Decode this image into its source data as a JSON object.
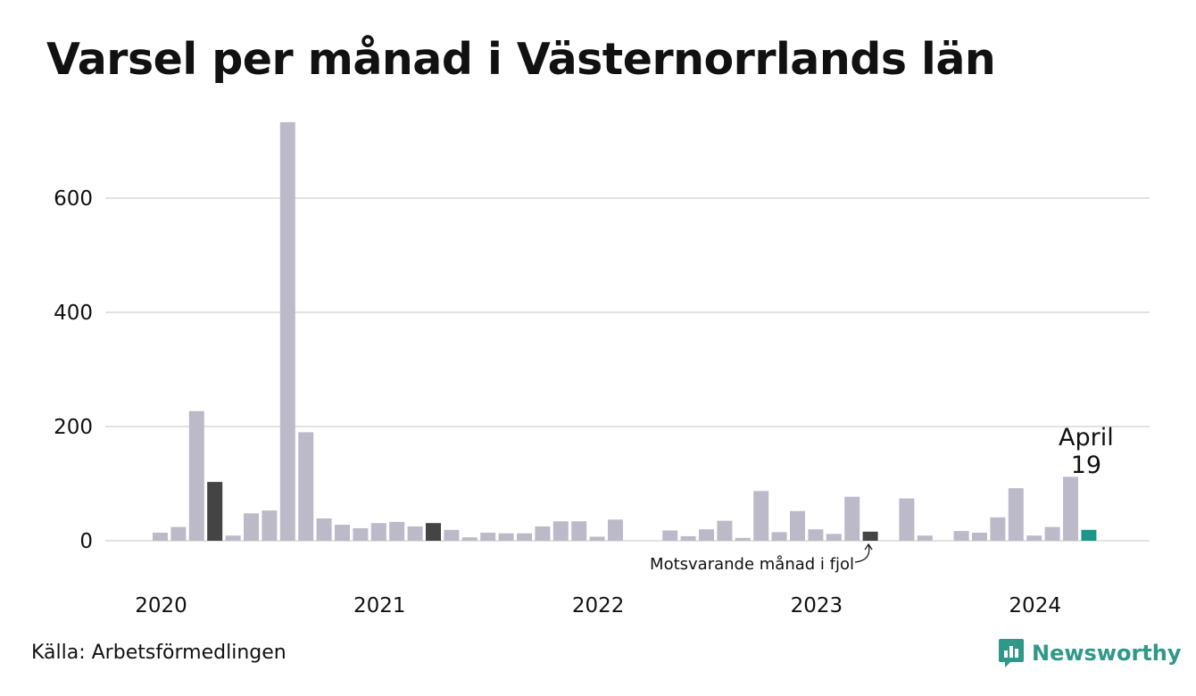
{
  "title": "Varsel per månad i Västernorrlands län",
  "source": "Källa: Arbetsförmedlingen",
  "brand": {
    "name": "Newsworthy",
    "icon": "chart-speech-bubble-icon",
    "color": "#2f9889"
  },
  "colors": {
    "bar": "#bcbac9",
    "comparison": "#444444",
    "current": "#1b978a",
    "grid": "#e2e2e2"
  },
  "chart_data": {
    "type": "bar",
    "title": "Varsel per månad i Västernorrlands län",
    "xlabel": "",
    "ylabel": "",
    "ylim": [
      -50,
      740
    ],
    "yticks": [
      0,
      200,
      400,
      600
    ],
    "grid": true,
    "x_tick_labels": [
      "2020",
      "2021",
      "2022",
      "2023",
      "2024"
    ],
    "categories": [
      "2020-01",
      "2020-02",
      "2020-03",
      "2020-04",
      "2020-05",
      "2020-06",
      "2020-07",
      "2020-08",
      "2020-09",
      "2020-10",
      "2020-11",
      "2020-12",
      "2021-01",
      "2021-02",
      "2021-03",
      "2021-04",
      "2021-05",
      "2021-06",
      "2021-07",
      "2021-08",
      "2021-09",
      "2021-10",
      "2021-11",
      "2021-12",
      "2022-01",
      "2022-02",
      "2022-03",
      "2022-04",
      "2022-05",
      "2022-06",
      "2022-07",
      "2022-08",
      "2022-09",
      "2022-10",
      "2022-11",
      "2022-12",
      "2023-01",
      "2023-02",
      "2023-03",
      "2023-04",
      "2023-05",
      "2023-06",
      "2023-07",
      "2023-08",
      "2023-09",
      "2023-10",
      "2023-11",
      "2023-12",
      "2024-01",
      "2024-02",
      "2024-03",
      "2024-04"
    ],
    "values": [
      14,
      24,
      227,
      103,
      9,
      48,
      53,
      733,
      190,
      39,
      28,
      22,
      31,
      33,
      25,
      31,
      19,
      6,
      14,
      13,
      13,
      25,
      34,
      34,
      7,
      37,
      0,
      0,
      18,
      8,
      20,
      35,
      5,
      87,
      15,
      52,
      20,
      12,
      77,
      16,
      0,
      74,
      9,
      0,
      17,
      14,
      41,
      92,
      9,
      24,
      112,
      19
    ],
    "highlights": {
      "comparison": [
        "2020-04",
        "2021-04",
        "2023-04"
      ],
      "current": "2024-04"
    },
    "annotations": {
      "current_month": "April",
      "current_value": "19",
      "comparison_label": "Motsvarande månad i fjol"
    }
  }
}
